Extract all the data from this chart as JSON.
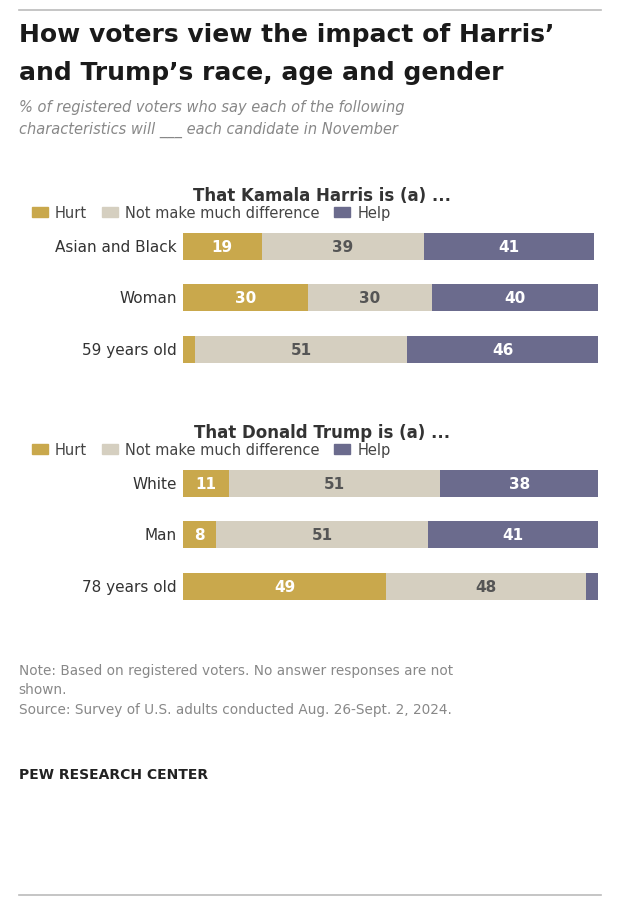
{
  "title_line1": "How voters view the impact of Harris’",
  "title_line2": "and Trump’s race, age and gender",
  "subtitle": "% of registered voters who say each of the following\ncharacteristics will ___ each candidate in November",
  "harris_title": "That Kamala Harris is (a) ...",
  "trump_title": "That Donald Trump is (a) ...",
  "harris_categories": [
    "Asian and Black",
    "Woman",
    "59 years old"
  ],
  "harris_hurt": [
    19,
    30,
    3
  ],
  "harris_neutral": [
    39,
    30,
    51
  ],
  "harris_help": [
    41,
    40,
    46
  ],
  "trump_categories": [
    "White",
    "Man",
    "78 years old"
  ],
  "trump_hurt": [
    11,
    8,
    49
  ],
  "trump_neutral": [
    51,
    51,
    48
  ],
  "trump_help": [
    38,
    41,
    3
  ],
  "color_hurt": "#C9A84C",
  "color_neutral": "#D5CFC0",
  "color_help": "#6B6B8D",
  "legend_labels": [
    "Hurt",
    "Not make much difference",
    "Help"
  ],
  "note_line1": "Note: Based on registered voters. No answer responses are not",
  "note_line2": "shown.",
  "note_line3": "Source: Survey of U.S. adults conducted Aug. 26-Sept. 2, 2024.",
  "branding": "PEW RESEARCH CENTER",
  "background_color": "#FFFFFF"
}
